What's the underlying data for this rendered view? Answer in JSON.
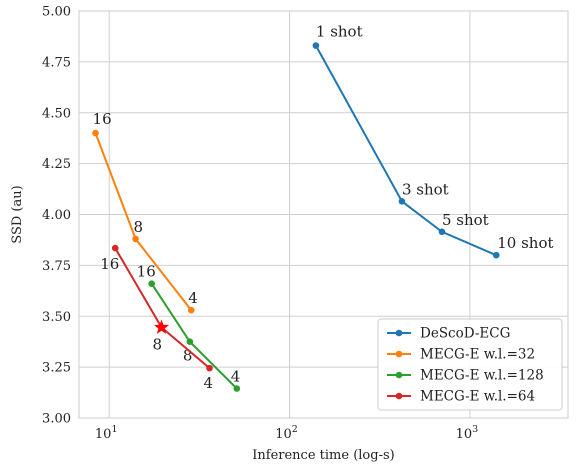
{
  "chart_data": {
    "type": "line",
    "xlabel": "Inference time (log-s)",
    "ylabel": "SSD (au)",
    "x_scale": "log",
    "xlim": [
      6.8,
      3500
    ],
    "ylim": [
      3.0,
      5.0
    ],
    "yticks": [
      "3.00",
      "3.25",
      "3.50",
      "3.75",
      "4.00",
      "4.25",
      "4.50",
      "4.75",
      "5.00"
    ],
    "xticks": [
      {
        "base": "10",
        "exp": "1"
      },
      {
        "base": "10",
        "exp": "2"
      },
      {
        "base": "10",
        "exp": "3"
      }
    ],
    "grid": true,
    "legend_position": "lower-right",
    "series": [
      {
        "name": "DeScoD-ECG",
        "color": "#1f77b4",
        "points": [
          {
            "x": 140,
            "y": 4.83,
            "label": "1 shot"
          },
          {
            "x": 420,
            "y": 4.065,
            "label": "3 shot"
          },
          {
            "x": 700,
            "y": 3.915,
            "label": "5 shot"
          },
          {
            "x": 1400,
            "y": 3.8,
            "label": "10 shot"
          }
        ]
      },
      {
        "name": "MECG-E w.l.=32",
        "color": "#ff7f0e",
        "points": [
          {
            "x": 8.4,
            "y": 4.4,
            "label": "16"
          },
          {
            "x": 14.0,
            "y": 3.88,
            "label": "8"
          },
          {
            "x": 28.5,
            "y": 3.53,
            "label": "4"
          }
        ]
      },
      {
        "name": "MECG-E w.l.=128",
        "color": "#2ca02c",
        "points": [
          {
            "x": 17.2,
            "y": 3.66,
            "label": "16"
          },
          {
            "x": 28.0,
            "y": 3.375,
            "label": "8"
          },
          {
            "x": 51.0,
            "y": 3.145,
            "label": "4"
          }
        ]
      },
      {
        "name": "MECG-E w.l.=64",
        "color": "#d62728",
        "points": [
          {
            "x": 10.8,
            "y": 3.835,
            "label": "16"
          },
          {
            "x": 19.5,
            "y": 3.445,
            "label": "8"
          },
          {
            "x": 36.0,
            "y": 3.245,
            "label": "4"
          }
        ]
      }
    ],
    "marker": {
      "type": "star",
      "color": "#ff0000",
      "x": 19.5,
      "y": 3.445
    }
  }
}
